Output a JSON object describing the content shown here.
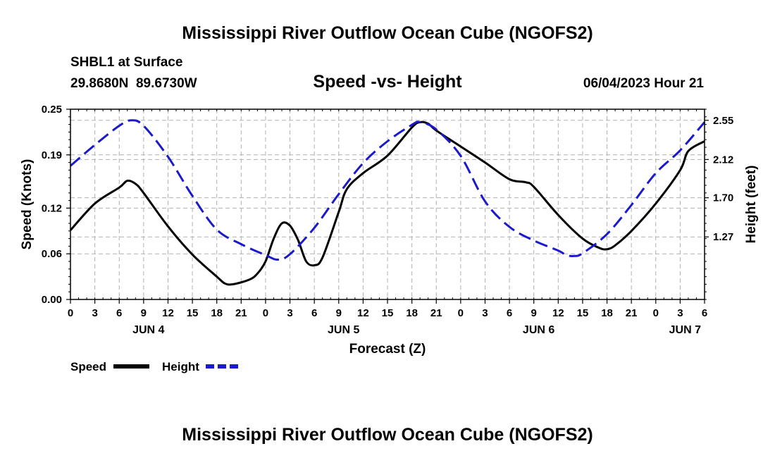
{
  "header": {
    "title": "Mississippi River Outflow Ocean Cube (NGOFS2)",
    "station": "SHBL1 at Surface",
    "location": "29.8680N  89.6730W",
    "subtitle": "Speed -vs- Height",
    "timestamp": "06/04/2023 Hour 21"
  },
  "footer": {
    "title": "Mississippi River Outflow Ocean Cube (NGOFS2)"
  },
  "colors": {
    "speed": "#000000",
    "height": "#1a1acc",
    "grid": "#b0b0b0"
  },
  "chart_data": {
    "type": "line",
    "xlabel": "Forecast (Z)",
    "x_unit": "hours since Jun 4 00Z",
    "xlim": [
      0,
      78
    ],
    "x_ticks": [
      0,
      3,
      6,
      9,
      12,
      15,
      18,
      21,
      24,
      27,
      30,
      33,
      36,
      39,
      42,
      45,
      48,
      51,
      54,
      57,
      60,
      63,
      66,
      69,
      72,
      75,
      78
    ],
    "x_tick_labels": [
      "0",
      "3",
      "6",
      "9",
      "12",
      "15",
      "18",
      "21",
      "0",
      "3",
      "6",
      "9",
      "12",
      "15",
      "18",
      "21",
      "0",
      "3",
      "6",
      "9",
      "12",
      "15",
      "18",
      "21",
      "0",
      "3",
      "6"
    ],
    "day_labels": [
      {
        "x": 9.6,
        "label": "JUN 4"
      },
      {
        "x": 33.6,
        "label": "JUN 5"
      },
      {
        "x": 57.6,
        "label": "JUN 6"
      },
      {
        "x": 75.6,
        "label": "JUN 7"
      }
    ],
    "y_left": {
      "label": "Speed (Knots)",
      "lim": [
        0,
        0.25
      ],
      "ticks": [
        0.0,
        0.06,
        0.12,
        0.19,
        0.25
      ],
      "tick_labels": [
        "0.00",
        "0.06",
        "0.12",
        "0.19",
        "0.25"
      ]
    },
    "y_right": {
      "label": "Height (feet)",
      "lim": [
        0.583,
        2.672
      ],
      "ticks": [
        1.27,
        1.7,
        2.12,
        2.55
      ],
      "tick_labels": [
        "1.27",
        "1.70",
        "2.12",
        "2.55"
      ]
    },
    "grid": true,
    "legend": {
      "position": "bottom-left"
    },
    "series": [
      {
        "name": "Speed",
        "axis": "left",
        "style": "solid",
        "points": [
          [
            0,
            0.091
          ],
          [
            3,
            0.126
          ],
          [
            6,
            0.147
          ],
          [
            7,
            0.156
          ],
          [
            8,
            0.152
          ],
          [
            9,
            0.14
          ],
          [
            12,
            0.096
          ],
          [
            15,
            0.059
          ],
          [
            18,
            0.03
          ],
          [
            19,
            0.021
          ],
          [
            20,
            0.02
          ],
          [
            22,
            0.026
          ],
          [
            23,
            0.034
          ],
          [
            24,
            0.05
          ],
          [
            25,
            0.08
          ],
          [
            26,
            0.1
          ],
          [
            27,
            0.097
          ],
          [
            28,
            0.078
          ],
          [
            29,
            0.05
          ],
          [
            30,
            0.045
          ],
          [
            31,
            0.055
          ],
          [
            33,
            0.115
          ],
          [
            34,
            0.145
          ],
          [
            36,
            0.166
          ],
          [
            39,
            0.189
          ],
          [
            42,
            0.226
          ],
          [
            43,
            0.233
          ],
          [
            44,
            0.231
          ],
          [
            45,
            0.222
          ],
          [
            48,
            0.201
          ],
          [
            51,
            0.18
          ],
          [
            54,
            0.158
          ],
          [
            56,
            0.154
          ],
          [
            57,
            0.148
          ],
          [
            60,
            0.111
          ],
          [
            63,
            0.08
          ],
          [
            65,
            0.068
          ],
          [
            66,
            0.066
          ],
          [
            67,
            0.071
          ],
          [
            69,
            0.09
          ],
          [
            72,
            0.126
          ],
          [
            75,
            0.17
          ],
          [
            76,
            0.195
          ],
          [
            78,
            0.208
          ]
        ]
      },
      {
        "name": "Height",
        "axis": "right",
        "style": "dashed",
        "points": [
          [
            0,
            2.05
          ],
          [
            3,
            2.28
          ],
          [
            6,
            2.49
          ],
          [
            7.5,
            2.55
          ],
          [
            9,
            2.49
          ],
          [
            12,
            2.15
          ],
          [
            15,
            1.72
          ],
          [
            18,
            1.35
          ],
          [
            21,
            1.19
          ],
          [
            24,
            1.07
          ],
          [
            25.5,
            1.02
          ],
          [
            27,
            1.08
          ],
          [
            30,
            1.37
          ],
          [
            33,
            1.74
          ],
          [
            36,
            2.08
          ],
          [
            39,
            2.32
          ],
          [
            42,
            2.5
          ],
          [
            43,
            2.53
          ],
          [
            45,
            2.45
          ],
          [
            48,
            2.16
          ],
          [
            51,
            1.66
          ],
          [
            54,
            1.38
          ],
          [
            57,
            1.23
          ],
          [
            60,
            1.12
          ],
          [
            61,
            1.07
          ],
          [
            62,
            1.06
          ],
          [
            63,
            1.09
          ],
          [
            66,
            1.3
          ],
          [
            69,
            1.62
          ],
          [
            72,
            1.97
          ],
          [
            75,
            2.22
          ],
          [
            78,
            2.53
          ]
        ]
      }
    ]
  }
}
